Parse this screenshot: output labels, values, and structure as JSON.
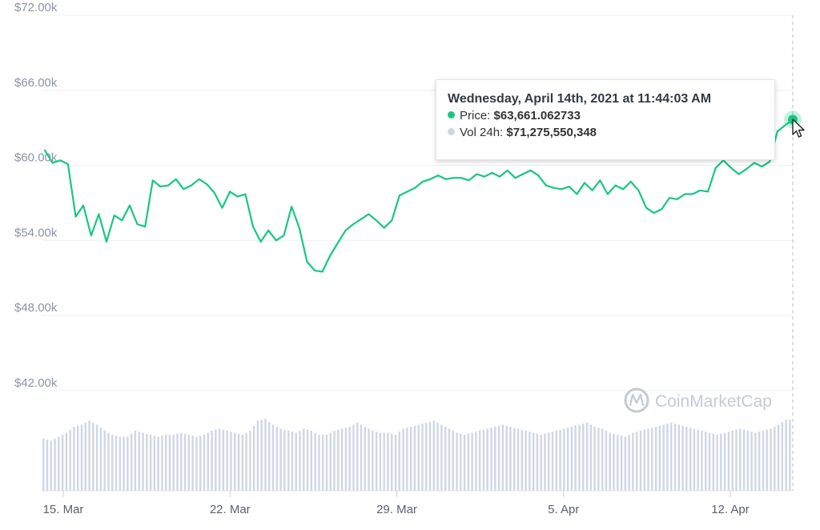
{
  "chart_data": {
    "type": "line",
    "title": "",
    "xlabel": "",
    "ylabel": "",
    "y_tick_labels": [
      "$72.00k",
      "$66.00k",
      "$60.00k",
      "$54.00k",
      "$48.00k",
      "$42.00k"
    ],
    "y_ticks": [
      72000,
      66000,
      60000,
      54000,
      48000,
      42000
    ],
    "ylim": [
      38000,
      72000
    ],
    "x_tick_labels": [
      "15. Mar",
      "22. Mar",
      "29. Mar",
      "5. Apr",
      "12. Apr"
    ],
    "x_tick_dates": [
      "2021-03-15",
      "2021-03-22",
      "2021-03-29",
      "2021-04-05",
      "2021-04-12"
    ],
    "xlim": [
      "2021-03-14",
      "2021-04-14"
    ],
    "grid": true,
    "series": [
      {
        "name": "Price",
        "color": "#16c784",
        "x": [
          "2021-03-14",
          "2021-03-14",
          "2021-03-15",
          "2021-03-15",
          "2021-03-15",
          "2021-03-15",
          "2021-03-16",
          "2021-03-16",
          "2021-03-16",
          "2021-03-16",
          "2021-03-17",
          "2021-03-17",
          "2021-03-17",
          "2021-03-17",
          "2021-03-18",
          "2021-03-18",
          "2021-03-18",
          "2021-03-19",
          "2021-03-19",
          "2021-03-19",
          "2021-03-20",
          "2021-03-20",
          "2021-03-20",
          "2021-03-21",
          "2021-03-21",
          "2021-03-21",
          "2021-03-22",
          "2021-03-22",
          "2021-03-22",
          "2021-03-23",
          "2021-03-23",
          "2021-03-23",
          "2021-03-24",
          "2021-03-24",
          "2021-03-24",
          "2021-03-24",
          "2021-03-25",
          "2021-03-25",
          "2021-03-25",
          "2021-03-26",
          "2021-03-26",
          "2021-03-26",
          "2021-03-27",
          "2021-03-27",
          "2021-03-27",
          "2021-03-28",
          "2021-03-28",
          "2021-03-28",
          "2021-03-29",
          "2021-03-29",
          "2021-03-29",
          "2021-03-30",
          "2021-03-30",
          "2021-03-30",
          "2021-03-31",
          "2021-03-31",
          "2021-03-31",
          "2021-04-01",
          "2021-04-01",
          "2021-04-01",
          "2021-04-02",
          "2021-04-02",
          "2021-04-02",
          "2021-04-03",
          "2021-04-03",
          "2021-04-03",
          "2021-04-04",
          "2021-04-04",
          "2021-04-04",
          "2021-04-05",
          "2021-04-05",
          "2021-04-05",
          "2021-04-06",
          "2021-04-06",
          "2021-04-06",
          "2021-04-07",
          "2021-04-07",
          "2021-04-07",
          "2021-04-08",
          "2021-04-08",
          "2021-04-08",
          "2021-04-09",
          "2021-04-09",
          "2021-04-09",
          "2021-04-10",
          "2021-04-10",
          "2021-04-10",
          "2021-04-11",
          "2021-04-11",
          "2021-04-11",
          "2021-04-12",
          "2021-04-12",
          "2021-04-12",
          "2021-04-13",
          "2021-04-13",
          "2021-04-13",
          "2021-04-14",
          "2021-04-14"
        ],
        "values": [
          61200,
          60200,
          60400,
          60100,
          55900,
          56800,
          54400,
          56100,
          53900,
          56000,
          55600,
          56800,
          55300,
          55100,
          58800,
          58300,
          58400,
          58900,
          58100,
          58400,
          58900,
          58500,
          57800,
          56600,
          57900,
          57500,
          57700,
          55100,
          53900,
          54800,
          54000,
          54400,
          56700,
          55000,
          52300,
          51600,
          51500,
          52800,
          53800,
          54800,
          55300,
          55700,
          56100,
          55600,
          55000,
          55600,
          57600,
          57900,
          58200,
          58700,
          58900,
          59200,
          58900,
          59000,
          59000,
          58800,
          59300,
          59100,
          59400,
          59100,
          59600,
          59000,
          59300,
          59600,
          59200,
          58400,
          58200,
          58100,
          58300,
          57700,
          58600,
          58000,
          58800,
          57700,
          58400,
          58100,
          58700,
          58000,
          56600,
          56200,
          56500,
          57400,
          57300,
          57700,
          57700,
          58000,
          57900,
          59800,
          60400,
          59800,
          59300,
          59700,
          60200,
          59900,
          60300,
          62700,
          63200,
          63661
        ]
      },
      {
        "name": "Vol 24h",
        "color": "#cfd6e4",
        "values_billion": [
          52,
          50,
          54,
          58,
          64,
          66,
          70,
          66,
          60,
          56,
          54,
          54,
          60,
          58,
          56,
          54,
          56,
          56,
          58,
          56,
          54,
          56,
          60,
          62,
          60,
          58,
          56,
          60,
          70,
          72,
          66,
          62,
          60,
          58,
          62,
          60,
          56,
          56,
          60,
          62,
          64,
          68,
          64,
          60,
          58,
          58,
          56,
          62,
          64,
          66,
          68,
          70,
          66,
          62,
          58,
          56,
          58,
          60,
          62,
          64,
          66,
          64,
          62,
          60,
          58,
          56,
          58,
          60,
          62,
          64,
          66,
          68,
          64,
          62,
          58,
          56,
          54,
          58,
          60,
          62,
          64,
          66,
          68,
          66,
          64,
          62,
          60,
          58,
          56,
          58,
          60,
          62,
          60,
          58,
          60,
          62,
          66,
          71
        ]
      }
    ]
  },
  "tooltip": {
    "title": "Wednesday, April 14th, 2021 at 11:44:03 AM",
    "price_label": "Price:",
    "price_value": "$63,661.062733",
    "vol_label": "Vol 24h:",
    "vol_value": "$71,275,550,348",
    "price_dot_color": "#16c784",
    "vol_dot_color": "#cfd6e4"
  },
  "watermark": {
    "text": "CoinMarketCap"
  }
}
